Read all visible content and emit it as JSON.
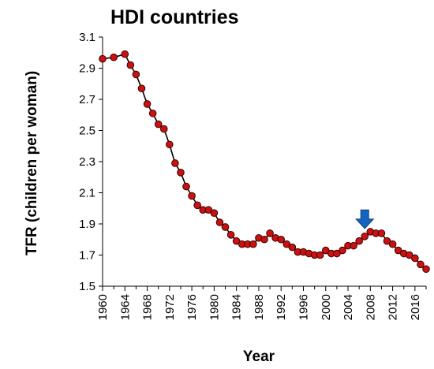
{
  "chart_data": {
    "type": "line",
    "title": "HDI countries",
    "xlabel": "Year",
    "ylabel": "TFR (children per woman)",
    "xlim": [
      1960,
      2018
    ],
    "ylim": [
      1.5,
      3.1
    ],
    "x_ticks": [
      1960,
      1964,
      1968,
      1972,
      1976,
      1980,
      1984,
      1988,
      1992,
      1996,
      2000,
      2004,
      2008,
      2012,
      2016
    ],
    "y_ticks": [
      1.5,
      1.7,
      1.9,
      2.1,
      2.3,
      2.5,
      2.7,
      2.9,
      3.1
    ],
    "grid": false,
    "legend": false,
    "colors": {
      "line": "#000000",
      "marker_fill": "#cc1111",
      "marker_stroke": "#3a0000",
      "arrow": "#1565c0"
    },
    "series": [
      {
        "x": [
          1960,
          1962,
          1964,
          1965,
          1966,
          1967,
          1968,
          1969,
          1970,
          1971,
          1972,
          1973,
          1974,
          1975,
          1976,
          1977,
          1978,
          1979,
          1980,
          1981,
          1982,
          1983,
          1984,
          1985,
          1986,
          1987,
          1988,
          1989,
          1990,
          1991,
          1992,
          1993,
          1994,
          1995,
          1996,
          1997,
          1998,
          1999,
          2000,
          2001,
          2002,
          2003,
          2004,
          2005,
          2006,
          2007,
          2008,
          2009,
          2010,
          2011,
          2012,
          2013,
          2014,
          2015,
          2016,
          2017,
          2018
        ],
        "y": [
          2.96,
          2.97,
          2.99,
          2.92,
          2.86,
          2.77,
          2.67,
          2.61,
          2.54,
          2.51,
          2.41,
          2.29,
          2.23,
          2.14,
          2.08,
          2.02,
          1.99,
          1.99,
          1.97,
          1.91,
          1.88,
          1.83,
          1.79,
          1.77,
          1.77,
          1.77,
          1.81,
          1.8,
          1.84,
          1.81,
          1.8,
          1.77,
          1.75,
          1.72,
          1.72,
          1.71,
          1.7,
          1.7,
          1.73,
          1.71,
          1.71,
          1.73,
          1.76,
          1.76,
          1.79,
          1.82,
          1.85,
          1.84,
          1.84,
          1.79,
          1.77,
          1.73,
          1.71,
          1.7,
          1.68,
          1.64,
          1.61
        ]
      }
    ],
    "annotations": [
      {
        "type": "arrow",
        "x": 2007,
        "y_from": 1.99,
        "y_to": 1.87,
        "direction": "down"
      }
    ]
  }
}
